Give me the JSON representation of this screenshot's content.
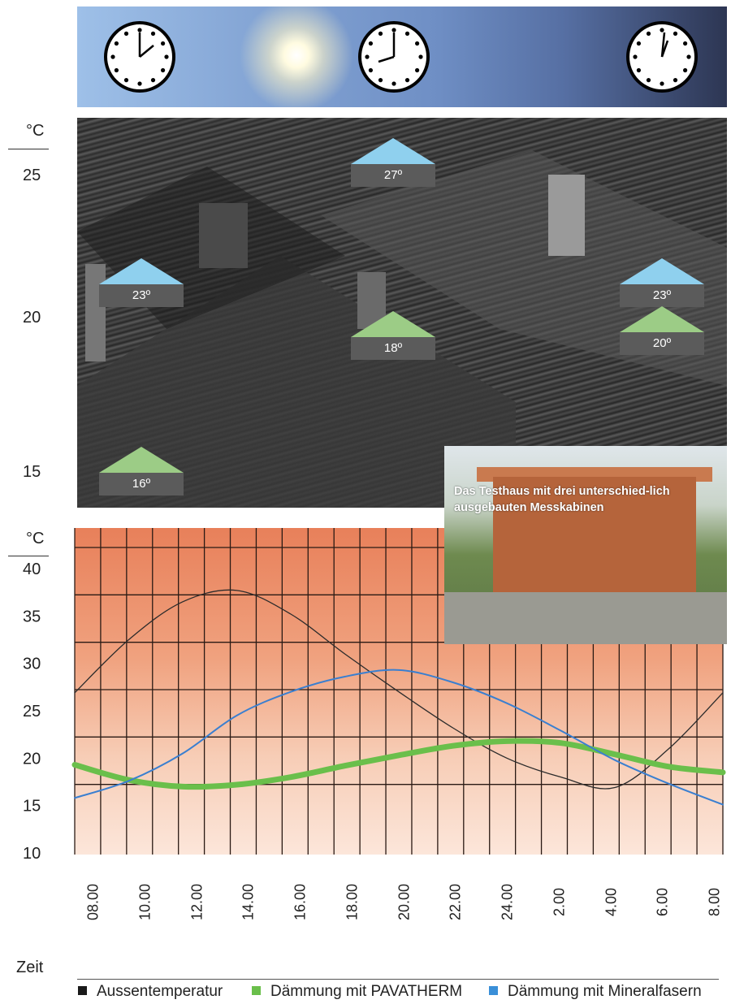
{
  "photo_labels": {
    "temps": [
      "27º",
      "23º",
      "23º",
      "18º",
      "20º",
      "16º"
    ]
  },
  "colors": {
    "blue_roof": "#8fd0ee",
    "blue_edge": "#2f78c0",
    "green_roof": "#9ccc86",
    "label_box": "#5b5b5b",
    "outside_line": "#2b2b2b",
    "pavatherm_line": "#6abf4b",
    "mineral_line": "#3a7fd0"
  },
  "icons": [
    "clock-icon",
    "clock-icon",
    "clock-icon",
    "sun-icon"
  ],
  "upper_scale": {
    "unit": "°C",
    "ticks": [
      "25",
      "20",
      "15"
    ]
  },
  "inset": {
    "caption": "Das Testhaus mit drei unterschied-lich ausgebauten Messkabinen"
  },
  "legend": {
    "items": [
      {
        "label": "Aussentemperatur",
        "color": "#1a1a1a"
      },
      {
        "label": "Dämmung mit PAVATHERM",
        "color": "#6abf4b"
      },
      {
        "label": "Dämmung mit Mineralfasern",
        "color": "#3a8fd8"
      }
    ]
  },
  "chart_data": {
    "type": "line",
    "xlabel": "Zeit",
    "ylabel": "°C",
    "ylim": [
      10,
      40
    ],
    "yticks": [
      "40",
      "35",
      "30",
      "25",
      "20",
      "15",
      "10"
    ],
    "categories": [
      "08.00",
      "10.00",
      "12.00",
      "14.00",
      "16.00",
      "18.00",
      "20.00",
      "22.00",
      "24.00",
      "2.00",
      "4.00",
      "6.00",
      "8.00"
    ],
    "series": [
      {
        "name": "Aussentemperatur",
        "color": "#2b2b2b",
        "values": [
          26.9,
          32.5,
          36.5,
          37.7,
          35.2,
          31.0,
          27.0,
          23.2,
          20.0,
          18.0,
          16.9,
          21.0,
          26.9
        ]
      },
      {
        "name": "Dämmung mit PAVATHERM",
        "color": "#6abf4b",
        "values": [
          19.3,
          17.7,
          17.0,
          17.2,
          18.0,
          19.2,
          20.3,
          21.3,
          21.8,
          21.6,
          20.4,
          19.1,
          18.5
        ]
      },
      {
        "name": "Dämmung mit Mineralfasern",
        "color": "#3a7fd0",
        "values": [
          15.8,
          17.6,
          20.5,
          24.5,
          27.0,
          28.6,
          29.3,
          28.0,
          25.8,
          22.9,
          19.8,
          17.3,
          15.1
        ]
      }
    ]
  }
}
